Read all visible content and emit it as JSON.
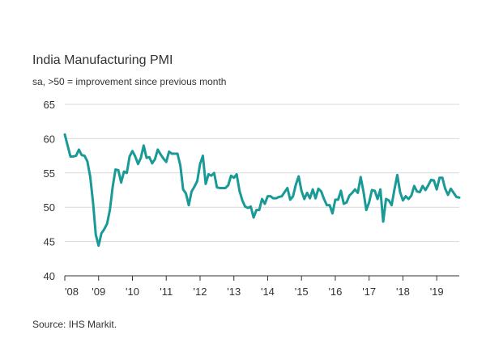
{
  "chart_data": {
    "type": "line",
    "title": "India Manufacturing PMI",
    "subtitle": "sa, >50 = improvement since previous month",
    "source": "Source: IHS Markit.",
    "xlabel": "",
    "ylabel": "",
    "ylim": [
      40,
      65
    ],
    "yticks": [
      "65",
      "60",
      "55",
      "50",
      "45",
      "40"
    ],
    "xticks": [
      "'08",
      "'09",
      "'10",
      "'11",
      "'12",
      "'13",
      "'14",
      "'15",
      "'16",
      "'17",
      "'18",
      "'19"
    ],
    "grid": "horizontal",
    "colors": {
      "line": "#1a9a96",
      "grid": "#d9d9d9",
      "axis": "#333333"
    },
    "x_start": "2008-01",
    "x_end": "2019-07",
    "series": [
      {
        "values": [
          60.6,
          59.0,
          57.4,
          57.4,
          57.5,
          58.4,
          57.6,
          57.5,
          56.7,
          54.5,
          50.8,
          46.0,
          44.4,
          46.2,
          46.8,
          47.6,
          49.6,
          53.0,
          55.5,
          55.4,
          53.6,
          55.2,
          55.0,
          57.4,
          58.2,
          57.4,
          56.3,
          57.2,
          59.0,
          57.2,
          57.3,
          56.4,
          57.0,
          58.4,
          57.7,
          57.1,
          56.6,
          58.1,
          57.8,
          57.8,
          57.8,
          56.1,
          52.6,
          52.0,
          50.3,
          52.3,
          53.0,
          53.8,
          56.3,
          57.5,
          53.4,
          54.8,
          54.6,
          55.0,
          52.9,
          52.8,
          52.8,
          52.8,
          53.2,
          54.6,
          54.3,
          54.8,
          52.4,
          51.0,
          50.1,
          49.9,
          50.1,
          48.5,
          49.6,
          49.6,
          51.2,
          50.5,
          51.6,
          51.6,
          51.3,
          51.3,
          51.5,
          51.6,
          52.2,
          52.8,
          51.1,
          51.6,
          53.3,
          54.5,
          52.4,
          51.2,
          52.1,
          51.3,
          52.6,
          51.3,
          52.7,
          52.3,
          51.2,
          50.3,
          50.3,
          49.1,
          51.1,
          51.1,
          52.4,
          50.5,
          50.7,
          51.7,
          52.1,
          52.6,
          52.1,
          54.4,
          52.3,
          49.6,
          50.7,
          52.5,
          52.4,
          51.2,
          52.6,
          47.9,
          51.2,
          51.0,
          50.3,
          52.6,
          54.7,
          52.2,
          51.0,
          51.6,
          51.2,
          51.7,
          53.1,
          52.3,
          52.2,
          53.1,
          52.5,
          53.2,
          54.0,
          53.9,
          52.6,
          54.3,
          54.3,
          52.7,
          51.8,
          52.7,
          52.1,
          51.5,
          51.4
        ]
      }
    ]
  }
}
